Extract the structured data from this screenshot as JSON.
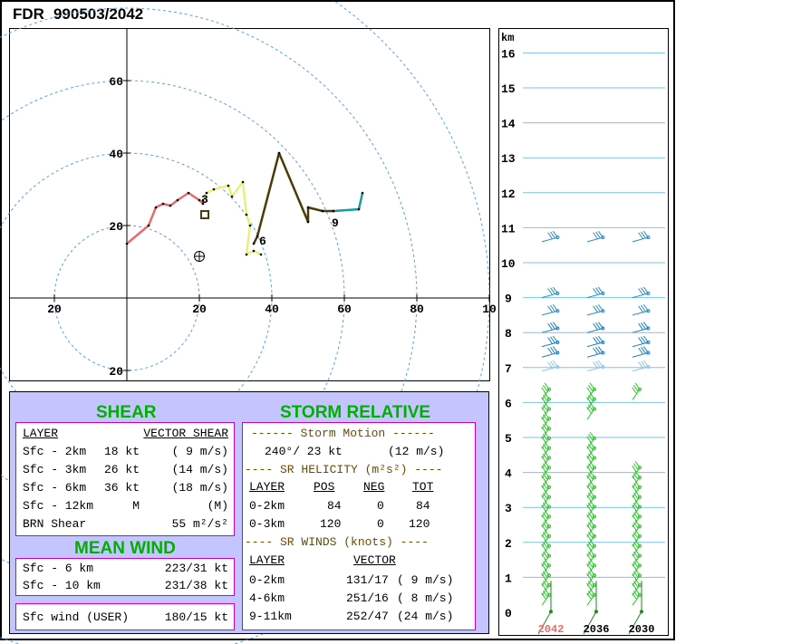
{
  "title": {
    "station": "FDR",
    "datetime": "990503/2042"
  },
  "chart_data": [
    {
      "type": "line",
      "title": "",
      "x_ticks": [
        "20",
        "20",
        "40",
        "60",
        "80",
        "10"
      ],
      "y_ticks": [
        "60",
        "40",
        "20",
        "20"
      ],
      "xlim": [
        -32,
        99
      ],
      "ylim": [
        -23,
        75
      ],
      "series": [
        {
          "color": "#e86a6a",
          "points": [
            [
              0,
              15
            ],
            [
              6,
              20
            ],
            [
              8,
              25
            ],
            [
              10,
              26
            ],
            [
              12,
              25.5
            ],
            [
              14,
              27
            ],
            [
              17,
              29
            ],
            [
              20,
              27
            ],
            [
              21,
              26
            ]
          ]
        },
        {
          "color": "#e6f07a",
          "points": [
            [
              21,
              27
            ],
            [
              22,
              29
            ],
            [
              24,
              30
            ],
            [
              28,
              31
            ],
            [
              29,
              28
            ],
            [
              32,
              32
            ],
            [
              33,
              23
            ],
            [
              34,
              20
            ],
            [
              33,
              12
            ],
            [
              35,
              13
            ],
            [
              37,
              12
            ]
          ]
        },
        {
          "color": "#4a3c08",
          "points": [
            [
              35,
              15
            ],
            [
              36,
              17
            ],
            [
              42,
              40
            ],
            [
              50,
              21
            ],
            [
              50,
              25
            ],
            [
              54,
              24
            ],
            [
              57,
              24
            ]
          ]
        },
        {
          "color": "#1a9c9c",
          "points": [
            [
              57,
              24
            ],
            [
              64,
              24.5
            ],
            [
              65,
              29
            ]
          ]
        }
      ],
      "labels": [
        {
          "text": "3",
          "x": 20.5,
          "y": 27.5
        },
        {
          "text": "6",
          "x": 36.5,
          "y": 16
        },
        {
          "text": "9",
          "x": 56.5,
          "y": 21
        }
      ],
      "markers": [
        {
          "kind": "square",
          "x": 21.5,
          "y": 23,
          "color": "#4a3c08"
        },
        {
          "kind": "circle-cross",
          "x": 20,
          "y": 11.5,
          "color": "#000000"
        }
      ]
    },
    {
      "type": "wind-barb-profile",
      "ylabel": "km",
      "y_ticks": [
        "0",
        "1",
        "2",
        "3",
        "4",
        "5",
        "6",
        "7",
        "8",
        "9",
        "10",
        "11",
        "12",
        "13",
        "14",
        "15",
        "16"
      ],
      "columns": [
        "2042",
        "2036",
        "2030"
      ],
      "column_colors": [
        "#e86a6a",
        "#000000",
        "#000000"
      ]
    }
  ],
  "shear": {
    "heading": "SHEAR",
    "header_layer": "LAYER",
    "header_vector": "VECTOR SHEAR",
    "rows": [
      {
        "layer": "Sfc - 2km",
        "kt": "18 kt",
        "ms": "( 9 m/s)"
      },
      {
        "layer": "Sfc - 3km",
        "kt": "26 kt",
        "ms": "(14 m/s)"
      },
      {
        "layer": "Sfc - 6km",
        "kt": "36 kt",
        "ms": "(18 m/s)"
      },
      {
        "layer": "Sfc - 12km",
        "kt": "M",
        "ms": "(M)"
      }
    ],
    "brn_label": "BRN Shear",
    "brn_value": "55 m²/s²"
  },
  "mean_wind": {
    "heading": "MEAN WIND",
    "rows": [
      {
        "label": "Sfc - 6 km",
        "value": "223/31 kt"
      },
      {
        "label": "Sfc - 10 km",
        "value": "231/38 kt"
      }
    ],
    "sfc_label": "Sfc wind (USER)",
    "sfc_value": "180/15 kt"
  },
  "storm_relative": {
    "heading": "STORM RELATIVE",
    "storm_motion_title": "------ Storm Motion ------",
    "storm_motion_dir": "240°/ 23 kt",
    "storm_motion_ms": "(12 m/s)",
    "helicity_title": "---- SR HELICITY (m²s²) ----",
    "helicity_headers": [
      "LAYER",
      "POS",
      "NEG",
      "TOT"
    ],
    "helicity_rows": [
      [
        "0-2km",
        "84",
        "0",
        "84"
      ],
      [
        "0-3km",
        "120",
        "0",
        "120"
      ]
    ],
    "winds_title": "---- SR WINDS (knots) ----",
    "winds_headers": [
      "LAYER",
      "VECTOR"
    ],
    "winds_rows": [
      {
        "layer": "0-2km",
        "vector": "131/17",
        "ms": "( 9 m/s)"
      },
      {
        "layer": "4-6km",
        "vector": "251/16",
        "ms": "( 8 m/s)"
      },
      {
        "layer": "9-11km",
        "vector": "252/47",
        "ms": "(24 m/s)"
      }
    ]
  }
}
